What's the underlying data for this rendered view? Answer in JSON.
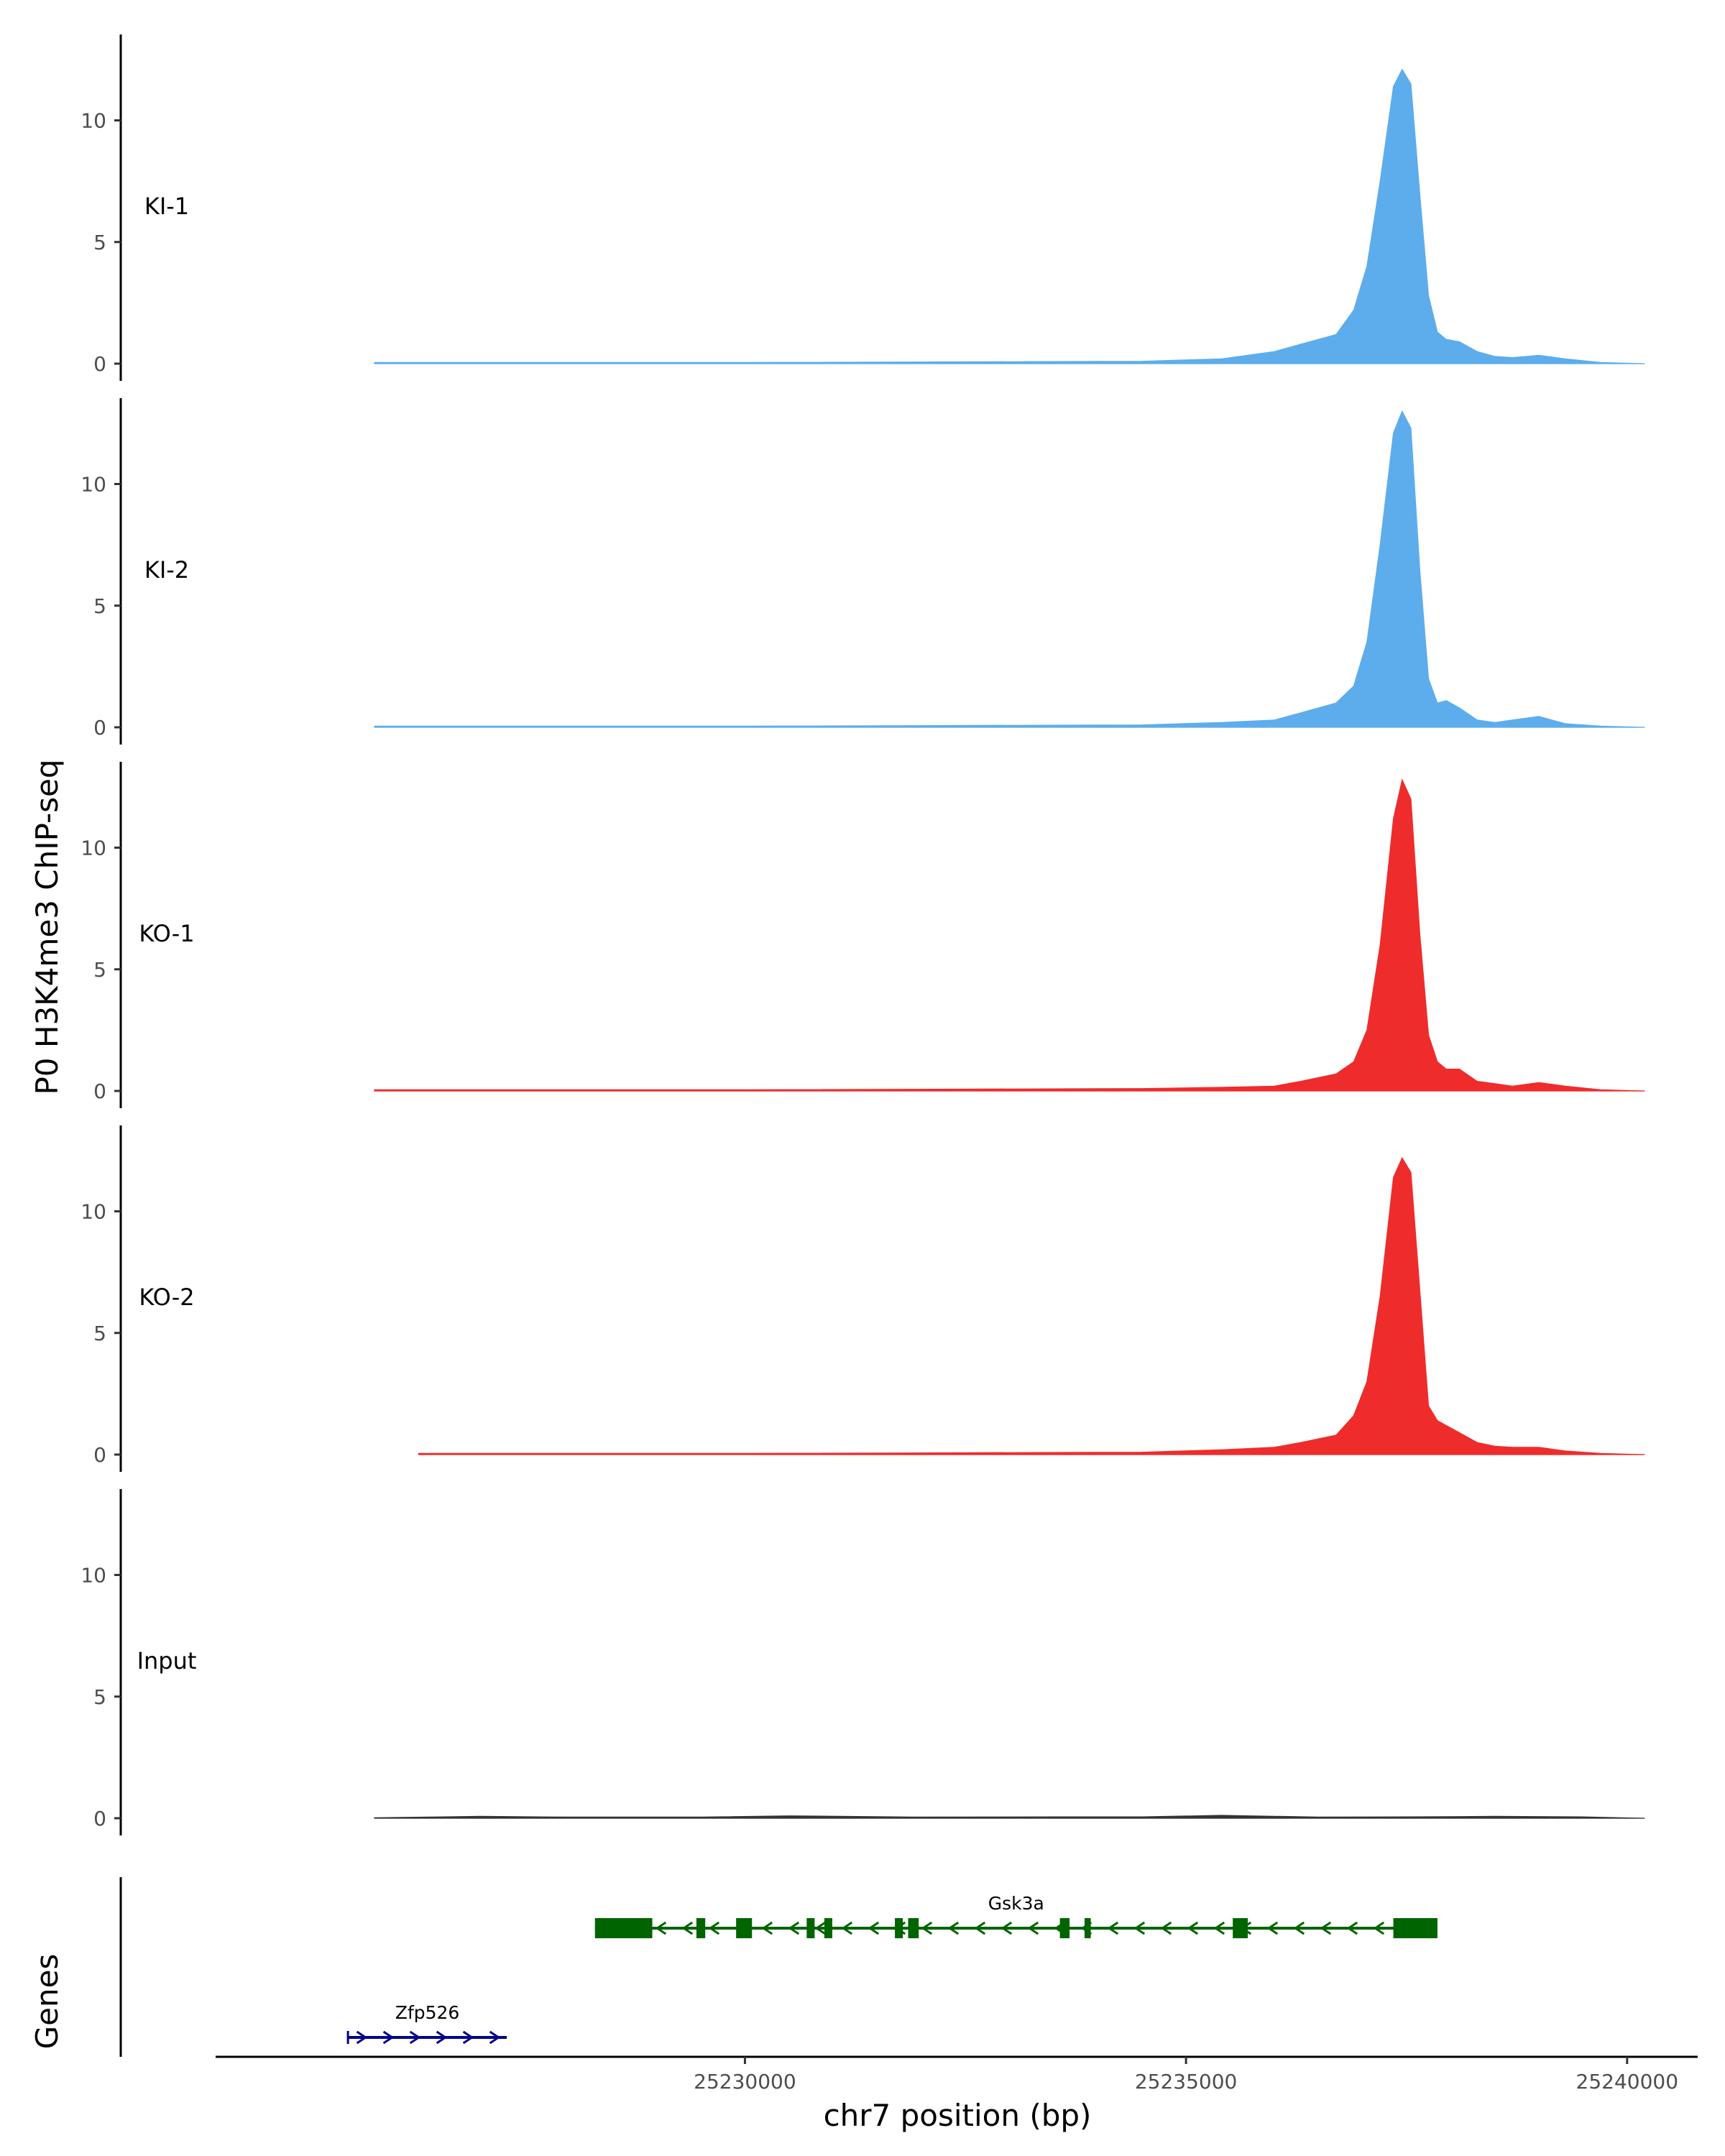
{
  "chart_data": {
    "type": "area",
    "ylabel": "P0 H3K4me3 ChIP-seq",
    "xlabel": "chr7 position (bp)",
    "genes_label": "Genes",
    "xlim": [
      25224000,
      25240800
    ],
    "ylim": [
      0,
      13.5
    ],
    "x_ticks": [
      25230000,
      25235000,
      25240000
    ],
    "x_tick_labels": [
      "25230000",
      "25235000",
      "25240000"
    ],
    "y_ticks": [
      0,
      5,
      10
    ],
    "y_tick_labels": [
      "0",
      "5",
      "10"
    ],
    "colors": {
      "KI": "#5DADEC",
      "KO": "#EE2C2C",
      "Input": "#333333",
      "gene_plus": "#00008B",
      "gene_minus": "#006400"
    },
    "series": [
      {
        "name": "KI-1",
        "color": "#5DADEC",
        "x": [
          25225800,
          25230000,
          25234500,
          25235400,
          25236000,
          25236300,
          25236700,
          25236900,
          25237050,
          25237200,
          25237350,
          25237450,
          25237550,
          25237650,
          25237750,
          25237850,
          25237950,
          25238100,
          25238300,
          25238500,
          25238700,
          25239000,
          25239300,
          25239700,
          25240200
        ],
        "values": [
          0.05,
          0.05,
          0.1,
          0.2,
          0.5,
          0.8,
          1.2,
          2.2,
          4.0,
          7.5,
          11.4,
          12.1,
          11.5,
          7.0,
          2.8,
          1.3,
          1.0,
          0.9,
          0.5,
          0.3,
          0.25,
          0.35,
          0.2,
          0.05,
          0.0
        ]
      },
      {
        "name": "KI-2",
        "color": "#5DADEC",
        "x": [
          25225800,
          25230000,
          25234500,
          25235400,
          25236000,
          25236300,
          25236700,
          25236900,
          25237050,
          25237200,
          25237350,
          25237450,
          25237550,
          25237650,
          25237750,
          25237850,
          25237950,
          25238100,
          25238300,
          25238500,
          25238700,
          25239000,
          25239300,
          25239700,
          25240200
        ],
        "values": [
          0.05,
          0.05,
          0.1,
          0.2,
          0.3,
          0.6,
          1.0,
          1.7,
          3.5,
          7.5,
          12.1,
          13.0,
          12.3,
          6.5,
          2.0,
          1.0,
          1.1,
          0.8,
          0.3,
          0.2,
          0.3,
          0.45,
          0.15,
          0.05,
          0.0
        ]
      },
      {
        "name": "KO-1",
        "color": "#EE2C2C",
        "x": [
          25225800,
          25230000,
          25234500,
          25235400,
          25236000,
          25236300,
          25236700,
          25236900,
          25237050,
          25237200,
          25237350,
          25237450,
          25237550,
          25237650,
          25237750,
          25237850,
          25237950,
          25238100,
          25238300,
          25238500,
          25238700,
          25239000,
          25239300,
          25239700,
          25240200
        ],
        "values": [
          0.05,
          0.05,
          0.1,
          0.15,
          0.2,
          0.4,
          0.7,
          1.2,
          2.5,
          6.0,
          11.2,
          12.8,
          12.0,
          6.5,
          2.3,
          1.2,
          0.9,
          0.9,
          0.4,
          0.3,
          0.2,
          0.35,
          0.2,
          0.05,
          0.0
        ]
      },
      {
        "name": "KO-2",
        "color": "#EE2C2C",
        "x": [
          25226300,
          25230000,
          25234500,
          25235400,
          25236000,
          25236300,
          25236700,
          25236900,
          25237050,
          25237200,
          25237350,
          25237450,
          25237550,
          25237650,
          25237750,
          25237850,
          25237950,
          25238100,
          25238300,
          25238500,
          25238700,
          25239000,
          25239300,
          25239700,
          25240200
        ],
        "values": [
          0.05,
          0.05,
          0.1,
          0.2,
          0.3,
          0.5,
          0.8,
          1.6,
          3.0,
          6.5,
          11.4,
          12.2,
          11.6,
          6.8,
          2.0,
          1.4,
          1.2,
          0.9,
          0.5,
          0.35,
          0.3,
          0.3,
          0.15,
          0.05,
          0.0
        ]
      },
      {
        "name": "Input",
        "color": "#333333",
        "x": [
          25225800,
          25227000,
          25228000,
          25229500,
          25230500,
          25232000,
          25233500,
          25234500,
          25235400,
          25236500,
          25237500,
          25238500,
          25239500,
          25240200
        ],
        "values": [
          0.02,
          0.08,
          0.05,
          0.05,
          0.1,
          0.05,
          0.06,
          0.06,
          0.12,
          0.05,
          0.06,
          0.08,
          0.06,
          0.0
        ]
      }
    ],
    "genes": [
      {
        "name": "Gsk3a",
        "strand": "-",
        "color": "#006400",
        "start": 25228300,
        "end": 25237850,
        "exons": [
          [
            25228300,
            25228950
          ],
          [
            25229450,
            25229550
          ],
          [
            25229900,
            25230080
          ],
          [
            25230700,
            25230790
          ],
          [
            25230900,
            25230990
          ],
          [
            25231700,
            25231790
          ],
          [
            25231850,
            25231970
          ],
          [
            25233570,
            25233680
          ],
          [
            25233850,
            25233920
          ],
          [
            25235530,
            25235700
          ],
          [
            25237350,
            25237850
          ]
        ]
      },
      {
        "name": "Zfp526",
        "strand": "+",
        "color": "#00008B",
        "start": 25225500,
        "end": 25227300,
        "exons": []
      }
    ]
  }
}
